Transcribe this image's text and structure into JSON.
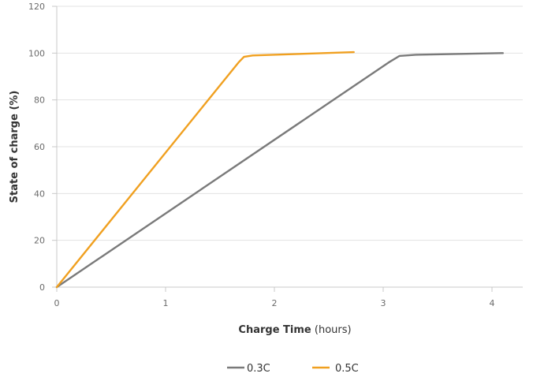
{
  "chart_data": {
    "type": "line",
    "xlabel_bold": "Charge Time",
    "xlabel_rest": " (hours)",
    "ylabel": "State of charge (%)",
    "xlim": [
      0,
      4.2
    ],
    "ylim": [
      0,
      120
    ],
    "xticks": [
      0,
      1,
      2,
      3,
      4
    ],
    "yticks": [
      0,
      20,
      40,
      60,
      80,
      100,
      120
    ],
    "grid": "horizontal",
    "legend_position": "bottom-center",
    "series": [
      {
        "name": "0.3C",
        "color": "#7a7a7a",
        "points": [
          [
            0,
            0
          ],
          [
            3.05,
            96
          ],
          [
            3.15,
            98.8
          ],
          [
            3.3,
            99.3
          ],
          [
            4.1,
            100
          ]
        ]
      },
      {
        "name": "0.5C",
        "color": "#f0a020",
        "points": [
          [
            0,
            0
          ],
          [
            1.67,
            96
          ],
          [
            1.72,
            98.4
          ],
          [
            1.8,
            99
          ],
          [
            2.73,
            100.4
          ]
        ]
      }
    ]
  }
}
